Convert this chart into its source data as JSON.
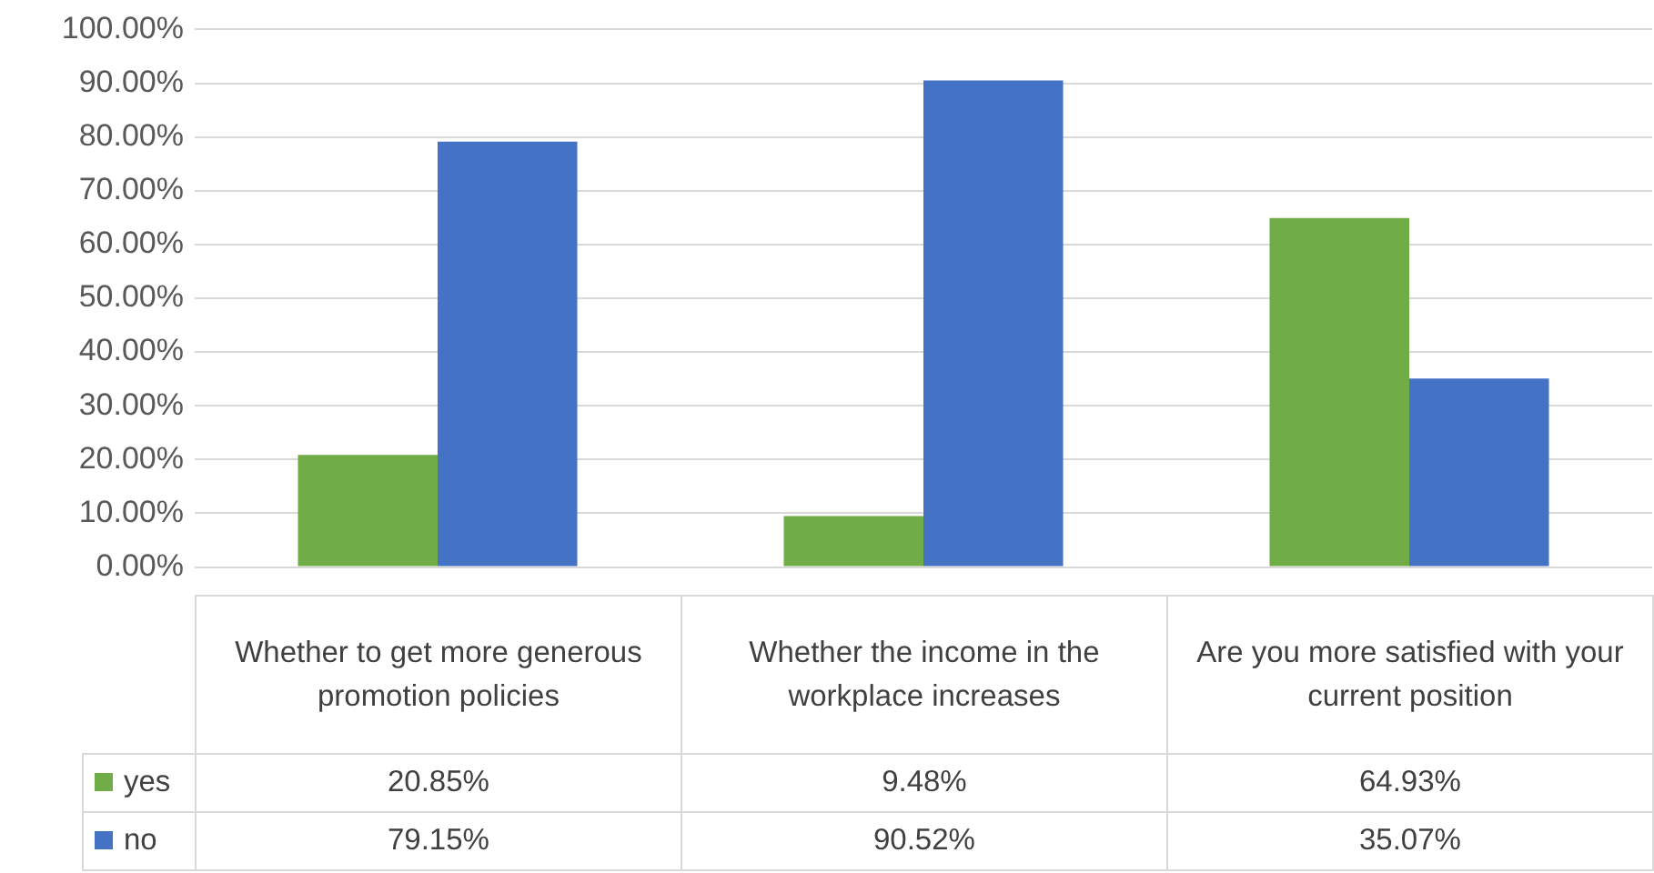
{
  "chart_data": {
    "type": "bar",
    "categories": [
      "Whether to get more generous promotion policies",
      "Whether the income in the workplace increases",
      "Are you more satisfied with your current position"
    ],
    "series": [
      {
        "name": "yes",
        "color": "#70ad47",
        "values": [
          20.85,
          9.48,
          64.93
        ],
        "value_labels": [
          "20.85%",
          "9.48%",
          "64.93%"
        ]
      },
      {
        "name": "no",
        "color": "#4472c4",
        "values": [
          79.15,
          90.52,
          35.07
        ],
        "value_labels": [
          "79.15%",
          "90.52%",
          "35.07%"
        ]
      }
    ],
    "ylim": [
      0,
      100
    ],
    "yticks": [
      {
        "value": 0,
        "label": "0.00%"
      },
      {
        "value": 10,
        "label": "10.00%"
      },
      {
        "value": 20,
        "label": "20.00%"
      },
      {
        "value": 30,
        "label": "30.00%"
      },
      {
        "value": 40,
        "label": "40.00%"
      },
      {
        "value": 50,
        "label": "50.00%"
      },
      {
        "value": 60,
        "label": "60.00%"
      },
      {
        "value": 70,
        "label": "70.00%"
      },
      {
        "value": 80,
        "label": "80.00%"
      },
      {
        "value": 90,
        "label": "90.00%"
      },
      {
        "value": 100,
        "label": "100.00%"
      }
    ],
    "grid": "y",
    "legend": "bottom left"
  }
}
